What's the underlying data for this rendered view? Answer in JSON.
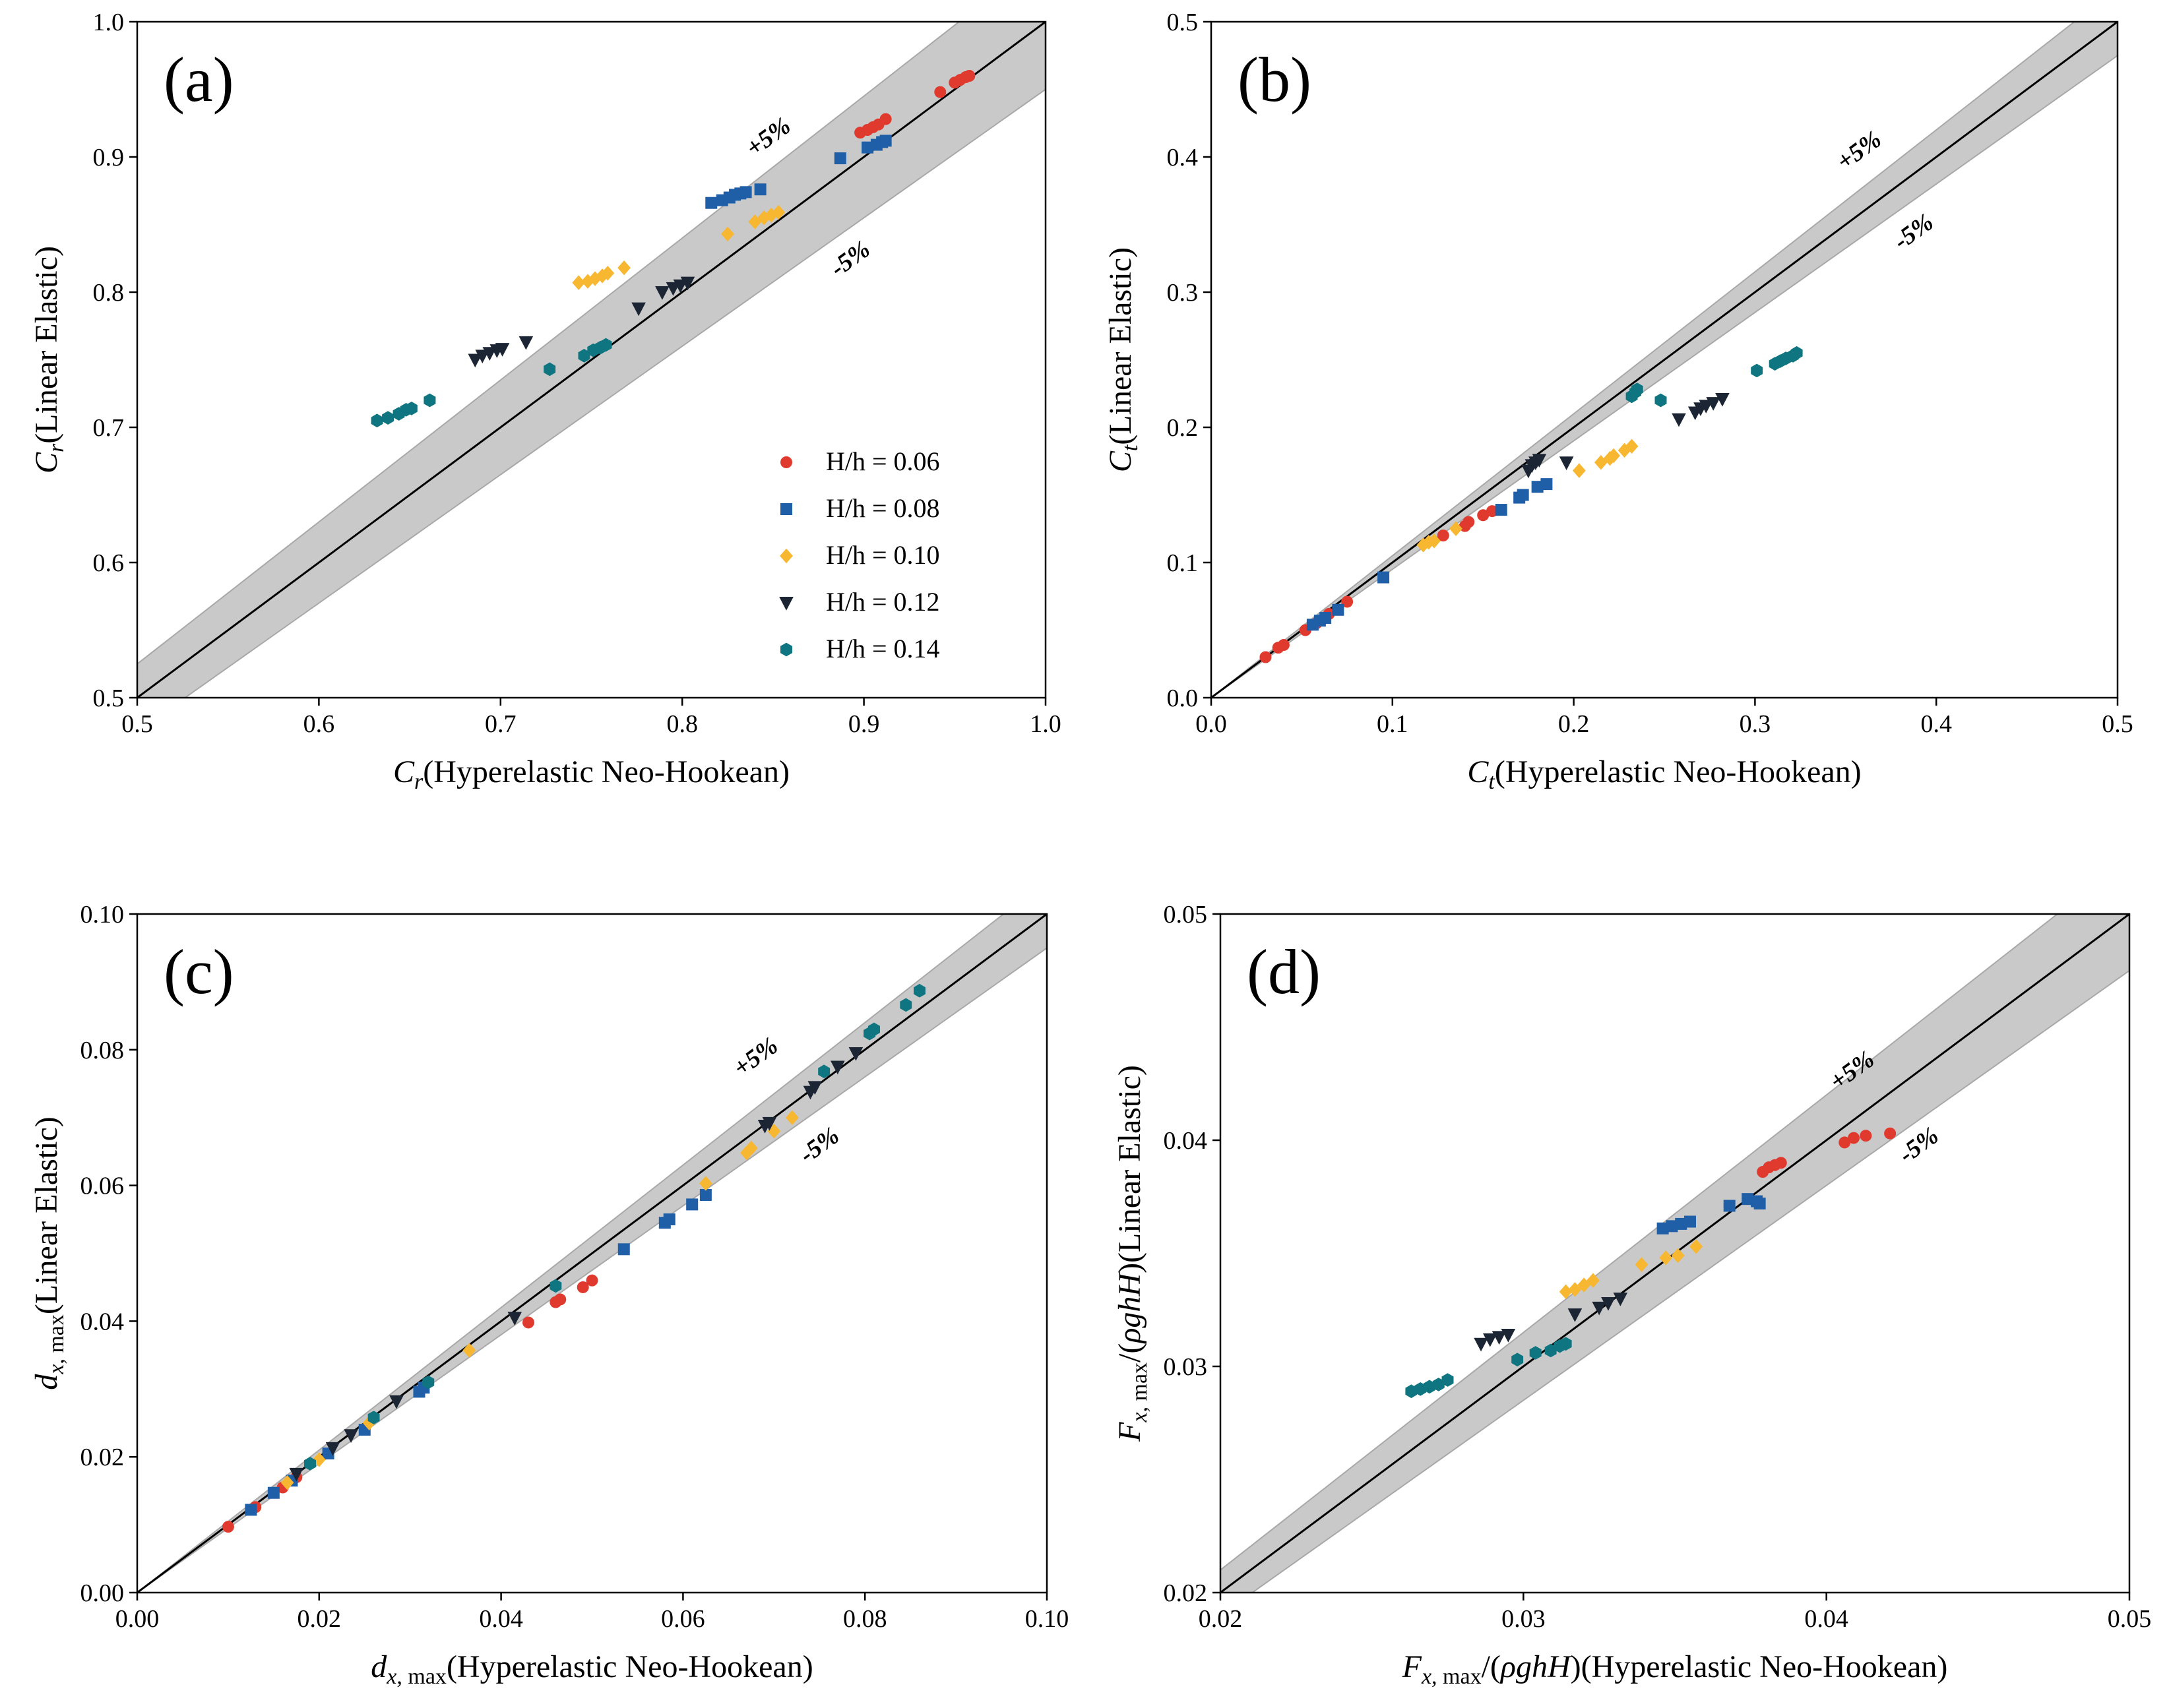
{
  "band_label_plus": "+5%",
  "band_label_minus": "-5%",
  "colors": {
    "0.06": "#e03a2f",
    "0.08": "#1f5fa8",
    "0.10": "#f7b731",
    "0.12": "#1b2533",
    "0.14": "#0f7580",
    "band": "#c9c9c9",
    "band_edge": "#a8a8a8"
  },
  "legend": {
    "placement": "lower-right of panel (a)",
    "entries": [
      {
        "key": "0.06",
        "label": "H/h = 0.06",
        "marker": "circle"
      },
      {
        "key": "0.08",
        "label": "H/h = 0.08",
        "marker": "square"
      },
      {
        "key": "0.10",
        "label": "H/h = 0.10",
        "marker": "diamond"
      },
      {
        "key": "0.12",
        "label": "H/h = 0.12",
        "marker": "triangle-down"
      },
      {
        "key": "0.14",
        "label": "H/h = 0.14",
        "marker": "hexagon"
      }
    ]
  },
  "chart_data": [
    {
      "panel": "(a)",
      "type": "scatter",
      "xlabel": "C_r(Hyperelastic Neo-Hookean)",
      "ylabel": "C_r(Linear Elastic)",
      "xlim": [
        0.5,
        1.0
      ],
      "ylim": [
        0.5,
        1.0
      ],
      "xticks": [
        "0.5",
        "0.6",
        "0.7",
        "0.8",
        "0.9",
        "1.0"
      ],
      "yticks": [
        "0.5",
        "0.6",
        "0.7",
        "0.8",
        "0.9",
        "1.0"
      ],
      "reference_line": "y = x",
      "band": "±5%",
      "series": [
        {
          "key": "0.06",
          "points": [
            [
              0.898,
              0.918
            ],
            [
              0.902,
              0.92
            ],
            [
              0.905,
              0.922
            ],
            [
              0.908,
              0.924
            ],
            [
              0.912,
              0.928
            ],
            [
              0.942,
              0.948
            ],
            [
              0.95,
              0.955
            ],
            [
              0.953,
              0.957
            ],
            [
              0.956,
              0.959
            ],
            [
              0.958,
              0.96
            ]
          ]
        },
        {
          "key": "0.08",
          "points": [
            [
              0.816,
              0.866
            ],
            [
              0.822,
              0.868
            ],
            [
              0.826,
              0.87
            ],
            [
              0.829,
              0.872
            ],
            [
              0.832,
              0.873
            ],
            [
              0.835,
              0.874
            ],
            [
              0.843,
              0.876
            ],
            [
              0.887,
              0.899
            ],
            [
              0.902,
              0.907
            ],
            [
              0.907,
              0.909
            ],
            [
              0.91,
              0.911
            ],
            [
              0.912,
              0.912
            ]
          ]
        },
        {
          "key": "0.10",
          "points": [
            [
              0.743,
              0.807
            ],
            [
              0.748,
              0.808
            ],
            [
              0.752,
              0.81
            ],
            [
              0.756,
              0.812
            ],
            [
              0.759,
              0.814
            ],
            [
              0.768,
              0.818
            ],
            [
              0.825,
              0.843
            ],
            [
              0.84,
              0.852
            ],
            [
              0.845,
              0.855
            ],
            [
              0.849,
              0.857
            ],
            [
              0.853,
              0.859
            ]
          ]
        },
        {
          "key": "0.12",
          "points": [
            [
              0.686,
              0.75
            ],
            [
              0.69,
              0.753
            ],
            [
              0.694,
              0.755
            ],
            [
              0.698,
              0.757
            ],
            [
              0.701,
              0.758
            ],
            [
              0.714,
              0.763
            ],
            [
              0.776,
              0.788
            ],
            [
              0.789,
              0.8
            ],
            [
              0.795,
              0.803
            ],
            [
              0.799,
              0.805
            ],
            [
              0.803,
              0.807
            ]
          ]
        },
        {
          "key": "0.14",
          "points": [
            [
              0.632,
              0.705
            ],
            [
              0.638,
              0.707
            ],
            [
              0.644,
              0.71
            ],
            [
              0.648,
              0.713
            ],
            [
              0.651,
              0.714
            ],
            [
              0.661,
              0.72
            ],
            [
              0.727,
              0.743
            ],
            [
              0.746,
              0.753
            ],
            [
              0.751,
              0.757
            ],
            [
              0.755,
              0.759
            ],
            [
              0.758,
              0.761
            ]
          ]
        }
      ]
    },
    {
      "panel": "(b)",
      "type": "scatter",
      "xlabel": "C_t(Hyperelastic Neo-Hookean)",
      "ylabel": "C_t(Linear Elastic)",
      "xlim": [
        0.0,
        0.5
      ],
      "ylim": [
        0.0,
        0.5
      ],
      "xticks": [
        "0.0",
        "0.1",
        "0.2",
        "0.3",
        "0.4",
        "0.5"
      ],
      "yticks": [
        "0.0",
        "0.1",
        "0.2",
        "0.3",
        "0.4",
        "0.5"
      ],
      "reference_line": "y = x",
      "band": "±5%",
      "series": [
        {
          "key": "0.06",
          "points": [
            [
              0.03,
              0.03
            ],
            [
              0.037,
              0.037
            ],
            [
              0.04,
              0.039
            ],
            [
              0.052,
              0.05
            ],
            [
              0.058,
              0.055
            ],
            [
              0.065,
              0.062
            ],
            [
              0.075,
              0.071
            ],
            [
              0.128,
              0.12
            ],
            [
              0.14,
              0.127
            ],
            [
              0.142,
              0.13
            ],
            [
              0.15,
              0.135
            ],
            [
              0.155,
              0.138
            ]
          ]
        },
        {
          "key": "0.08",
          "points": [
            [
              0.056,
              0.054
            ],
            [
              0.06,
              0.057
            ],
            [
              0.063,
              0.059
            ],
            [
              0.07,
              0.065
            ],
            [
              0.095,
              0.089
            ],
            [
              0.16,
              0.139
            ],
            [
              0.17,
              0.148
            ],
            [
              0.172,
              0.15
            ],
            [
              0.18,
              0.156
            ],
            [
              0.185,
              0.158
            ]
          ]
        },
        {
          "key": "0.10",
          "points": [
            [
              0.117,
              0.113
            ],
            [
              0.12,
              0.115
            ],
            [
              0.123,
              0.116
            ],
            [
              0.135,
              0.125
            ],
            [
              0.203,
              0.168
            ],
            [
              0.215,
              0.174
            ],
            [
              0.22,
              0.177
            ],
            [
              0.222,
              0.179
            ],
            [
              0.228,
              0.183
            ],
            [
              0.232,
              0.186
            ]
          ]
        },
        {
          "key": "0.12",
          "points": [
            [
              0.175,
              0.168
            ],
            [
              0.177,
              0.172
            ],
            [
              0.179,
              0.174
            ],
            [
              0.181,
              0.176
            ],
            [
              0.196,
              0.174
            ],
            [
              0.258,
              0.206
            ],
            [
              0.267,
              0.211
            ],
            [
              0.27,
              0.214
            ],
            [
              0.273,
              0.216
            ],
            [
              0.277,
              0.218
            ],
            [
              0.282,
              0.221
            ]
          ]
        },
        {
          "key": "0.14",
          "points": [
            [
              0.232,
              0.223
            ],
            [
              0.234,
              0.226
            ],
            [
              0.235,
              0.228
            ],
            [
              0.248,
              0.22
            ],
            [
              0.301,
              0.242
            ],
            [
              0.311,
              0.247
            ],
            [
              0.314,
              0.249
            ],
            [
              0.317,
              0.251
            ],
            [
              0.321,
              0.253
            ],
            [
              0.323,
              0.255
            ]
          ]
        }
      ]
    },
    {
      "panel": "(c)",
      "type": "scatter",
      "xlabel": "d_x,max(Hyperelastic Neo-Hookean)",
      "ylabel": "d_x,max(Linear Elastic)",
      "xlim": [
        0.0,
        0.1
      ],
      "ylim": [
        0.0,
        0.1
      ],
      "xticks": [
        "0.00",
        "0.02",
        "0.04",
        "0.06",
        "0.08",
        "0.10"
      ],
      "yticks": [
        "0.00",
        "0.02",
        "0.04",
        "0.06",
        "0.08",
        "0.10"
      ],
      "reference_line": "y = x",
      "band": "±5%",
      "series": [
        {
          "key": "0.06",
          "points": [
            [
              0.01,
              0.0097
            ],
            [
              0.013,
              0.0126
            ],
            [
              0.016,
              0.0155
            ],
            [
              0.0175,
              0.017
            ],
            [
              0.043,
              0.0398
            ],
            [
              0.046,
              0.0428
            ],
            [
              0.0465,
              0.0432
            ],
            [
              0.049,
              0.045
            ],
            [
              0.05,
              0.046
            ]
          ]
        },
        {
          "key": "0.08",
          "points": [
            [
              0.0125,
              0.0122
            ],
            [
              0.015,
              0.0147
            ],
            [
              0.017,
              0.0165
            ],
            [
              0.021,
              0.0205
            ],
            [
              0.025,
              0.024
            ],
            [
              0.031,
              0.0296
            ],
            [
              0.0315,
              0.0302
            ],
            [
              0.0535,
              0.0506
            ],
            [
              0.058,
              0.0545
            ],
            [
              0.0585,
              0.055
            ],
            [
              0.061,
              0.0572
            ],
            [
              0.0625,
              0.0586
            ]
          ]
        },
        {
          "key": "0.10",
          "points": [
            [
              0.0165,
              0.0162
            ],
            [
              0.02,
              0.0196
            ],
            [
              0.0255,
              0.025
            ],
            [
              0.0365,
              0.0357
            ],
            [
              0.0625,
              0.0603
            ],
            [
              0.067,
              0.0648
            ],
            [
              0.0675,
              0.0655
            ],
            [
              0.07,
              0.068
            ],
            [
              0.072,
              0.07
            ]
          ]
        },
        {
          "key": "0.12",
          "points": [
            [
              0.0175,
              0.0175
            ],
            [
              0.0215,
              0.0213
            ],
            [
              0.0235,
              0.0232
            ],
            [
              0.0285,
              0.0282
            ],
            [
              0.0415,
              0.0405
            ],
            [
              0.069,
              0.0688
            ],
            [
              0.0695,
              0.0692
            ],
            [
              0.074,
              0.0738
            ],
            [
              0.0745,
              0.0745
            ],
            [
              0.077,
              0.0775
            ],
            [
              0.079,
              0.0795
            ]
          ]
        },
        {
          "key": "0.14",
          "points": [
            [
              0.019,
              0.019
            ],
            [
              0.026,
              0.0258
            ],
            [
              0.032,
              0.031
            ],
            [
              0.046,
              0.0452
            ],
            [
              0.0755,
              0.0768
            ],
            [
              0.0805,
              0.0824
            ],
            [
              0.081,
              0.083
            ],
            [
              0.0845,
              0.0866
            ],
            [
              0.086,
              0.0887
            ]
          ]
        }
      ]
    },
    {
      "panel": "(d)",
      "type": "scatter",
      "xlabel": "F_x,max/(ρghH)(Hyperelastic Neo-Hookean)",
      "ylabel": "F_x,max/(ρghH)(Linear Elastic)",
      "xlim": [
        0.02,
        0.05
      ],
      "ylim": [
        0.02,
        0.05
      ],
      "xticks": [
        "0.02",
        "0.03",
        "0.04",
        "0.05"
      ],
      "yticks": [
        "0.02",
        "0.03",
        "0.04",
        "0.05"
      ],
      "reference_line": "y = x",
      "band": "±5%",
      "series": [
        {
          "key": "0.06",
          "points": [
            [
              0.0379,
              0.0386
            ],
            [
              0.0381,
              0.0388
            ],
            [
              0.0383,
              0.0389
            ],
            [
              0.0385,
              0.039
            ],
            [
              0.0406,
              0.0399
            ],
            [
              0.0409,
              0.0401
            ],
            [
              0.0413,
              0.0402
            ],
            [
              0.0421,
              0.0403
            ]
          ]
        },
        {
          "key": "0.08",
          "points": [
            [
              0.0346,
              0.0361
            ],
            [
              0.0349,
              0.0362
            ],
            [
              0.0352,
              0.0363
            ],
            [
              0.0355,
              0.0364
            ],
            [
              0.0368,
              0.0371
            ],
            [
              0.0374,
              0.0374
            ],
            [
              0.0377,
              0.0373
            ],
            [
              0.0378,
              0.0372
            ]
          ]
        },
        {
          "key": "0.10",
          "points": [
            [
              0.0314,
              0.0333
            ],
            [
              0.0317,
              0.0334
            ],
            [
              0.032,
              0.0336
            ],
            [
              0.0323,
              0.0338
            ],
            [
              0.0339,
              0.0345
            ],
            [
              0.0347,
              0.0348
            ],
            [
              0.0351,
              0.0349
            ],
            [
              0.0357,
              0.0353
            ]
          ]
        },
        {
          "key": "0.12",
          "points": [
            [
              0.0286,
              0.031
            ],
            [
              0.0289,
              0.0312
            ],
            [
              0.0292,
              0.0313
            ],
            [
              0.0295,
              0.0314
            ],
            [
              0.0317,
              0.0323
            ],
            [
              0.0325,
              0.0326
            ],
            [
              0.0328,
              0.0328
            ],
            [
              0.0332,
              0.033
            ]
          ]
        },
        {
          "key": "0.14",
          "points": [
            [
              0.0263,
              0.0289
            ],
            [
              0.0266,
              0.029
            ],
            [
              0.0269,
              0.0291
            ],
            [
              0.0272,
              0.0292
            ],
            [
              0.0275,
              0.0294
            ],
            [
              0.0298,
              0.0303
            ],
            [
              0.0304,
              0.0306
            ],
            [
              0.0309,
              0.0307
            ],
            [
              0.0312,
              0.0309
            ],
            [
              0.0314,
              0.031
            ]
          ]
        }
      ]
    }
  ]
}
